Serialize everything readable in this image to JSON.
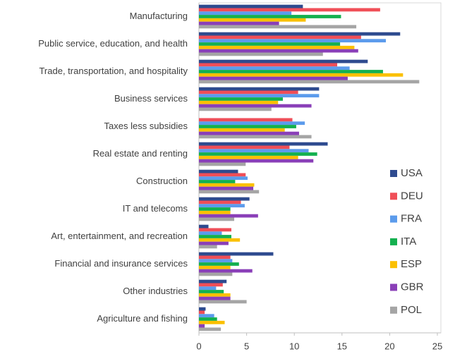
{
  "chart_data": {
    "type": "barh",
    "categories": [
      "Manufacturing",
      "Public service, education, and health",
      "Trade, transportation, and hospitality",
      "Business services",
      "Taxes less subsidies",
      "Real estate and renting",
      "Construction",
      "IT and telecoms",
      "Art, entertainment, and recreation",
      "Financial and insurance services",
      "Other industries",
      "Agriculture and fishing"
    ],
    "series": [
      {
        "name": "USA",
        "color": "#2e4b8f",
        "values": [
          10.9,
          21.1,
          17.7,
          12.6,
          null,
          13.5,
          4.1,
          5.3,
          1.0,
          7.8,
          2.9,
          0.7
        ]
      },
      {
        "name": "DEU",
        "color": "#f04e57",
        "values": [
          19.0,
          17.0,
          14.5,
          10.4,
          9.8,
          9.5,
          4.9,
          4.4,
          3.4,
          3.3,
          2.5,
          0.6
        ]
      },
      {
        "name": "FRA",
        "color": "#5b9bec",
        "values": [
          9.7,
          19.6,
          15.8,
          12.6,
          11.1,
          11.5,
          5.1,
          4.8,
          2.4,
          3.5,
          1.8,
          1.6
        ]
      },
      {
        "name": "ITA",
        "color": "#13b04f",
        "values": [
          14.9,
          14.8,
          19.3,
          8.8,
          10.2,
          12.4,
          3.8,
          3.3,
          3.4,
          4.2,
          2.6,
          1.9
        ]
      },
      {
        "name": "ESP",
        "color": "#fbc000",
        "values": [
          11.2,
          16.3,
          21.4,
          8.3,
          9.0,
          10.4,
          5.8,
          3.3,
          4.3,
          3.3,
          3.3,
          2.7
        ]
      },
      {
        "name": "GBR",
        "color": "#8a3fb8",
        "values": [
          8.4,
          16.7,
          15.6,
          11.8,
          10.5,
          12.0,
          5.7,
          6.2,
          3.1,
          5.6,
          3.3,
          0.6
        ]
      },
      {
        "name": "POL",
        "color": "#a5a5a5",
        "values": [
          16.5,
          13.0,
          23.1,
          7.6,
          11.8,
          4.9,
          6.3,
          3.7,
          1.9,
          3.5,
          5.0,
          2.3
        ]
      }
    ],
    "xlim": [
      0,
      25
    ],
    "xticks": [
      0,
      5,
      10,
      15,
      20,
      25
    ],
    "grid": false,
    "legend": "right"
  }
}
